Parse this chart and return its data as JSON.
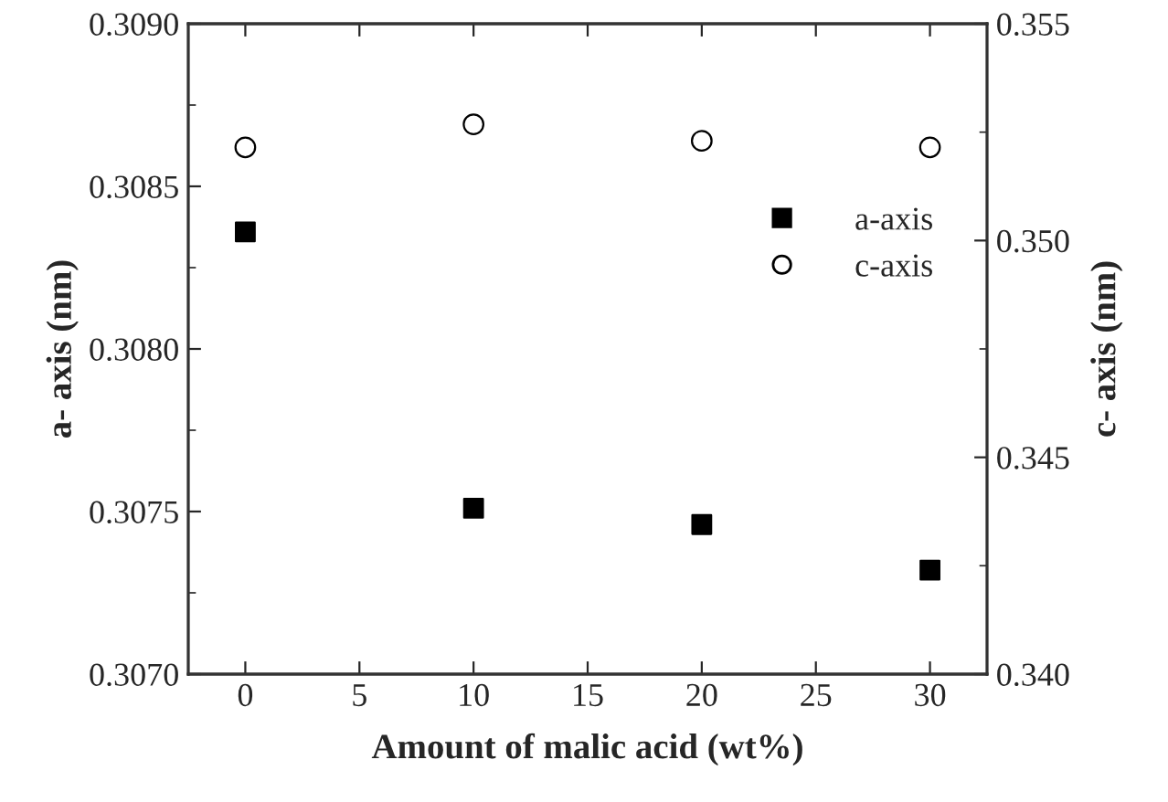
{
  "chart_data": {
    "type": "scatter",
    "xlabel": "Amount of malic acid (wt%)",
    "ylabel": "a- axis (nm)",
    "y2label": "c- axis (nm)",
    "x": [
      0,
      10,
      20,
      30
    ],
    "series": [
      {
        "name": "a-axis",
        "color": "#000000",
        "marker": "square",
        "values": [
          0.30836,
          0.30751,
          0.30746,
          0.30732
        ]
      },
      {
        "name": "c-axis",
        "color": "#000000",
        "marker": "circle",
        "axis": "y2",
        "values": [
          0.35215,
          0.35268,
          0.3523,
          0.35215
        ]
      }
    ],
    "xlim": [
      -2.5,
      32.5
    ],
    "xticks": [
      0,
      5,
      10,
      15,
      20,
      25,
      30
    ],
    "ylim": [
      0.307,
      0.309
    ],
    "yticks": [
      {
        "value": 0.307,
        "label": "0.3070"
      },
      {
        "value": 0.3075,
        "label": "0.3075"
      },
      {
        "value": 0.308,
        "label": "0.3080"
      },
      {
        "value": 0.3085,
        "label": "0.3085"
      },
      {
        "value": 0.309,
        "label": "0.3090"
      }
    ],
    "y2lim": [
      0.34,
      0.355
    ],
    "y2ticks": [
      {
        "value": 0.34,
        "label": "0.340"
      },
      {
        "value": 0.345,
        "label": "0.345"
      },
      {
        "value": 0.35,
        "label": "0.350"
      },
      {
        "value": 0.355,
        "label": "0.355"
      }
    ],
    "legend": "center right",
    "grid": false
  }
}
